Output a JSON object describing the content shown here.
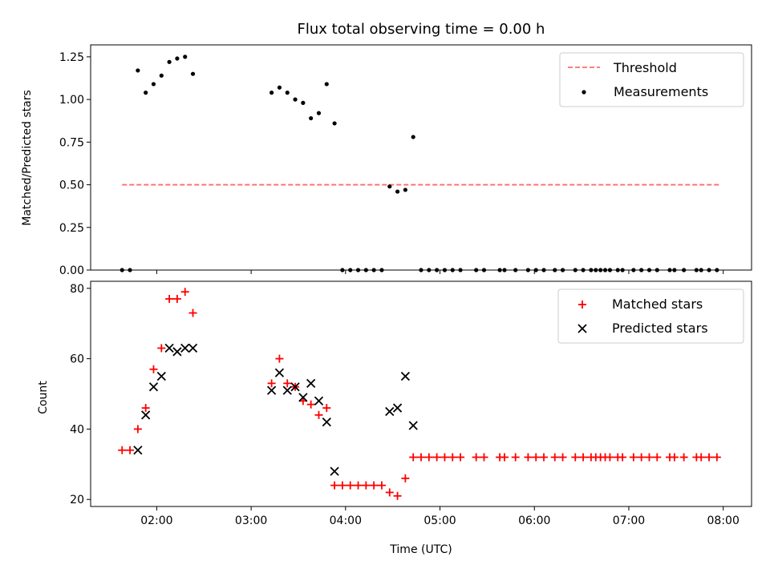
{
  "colors": {
    "threshold": "#ff6b6b",
    "measurement": "#000000",
    "matched": "#ff0000",
    "predicted": "#000000",
    "axis": "#000000"
  },
  "chart_data": [
    {
      "type": "scatter",
      "title": "Flux total observing time = 0.00 h",
      "xlabel": "",
      "ylabel": "Matched/Predicted stars",
      "ylim": [
        0,
        1.32
      ],
      "yticks": [
        0.0,
        0.25,
        0.5,
        0.75,
        1.0,
        1.25
      ],
      "ytick_labels": [
        "0.00",
        "0.25",
        "0.50",
        "0.75",
        "1.00",
        "1.25"
      ],
      "legend_position": "top-right",
      "legend": [
        "Threshold",
        "Measurements"
      ],
      "threshold": {
        "name": "Threshold",
        "y": 0.5,
        "x_start": "01:38",
        "x_end": "07:58"
      },
      "measurements": {
        "x": [
          "01:38",
          "01:43",
          "01:48",
          "01:53",
          "01:58",
          "02:03",
          "02:08",
          "02:13",
          "02:18",
          "02:23",
          "03:13",
          "03:18",
          "03:23",
          "03:28",
          "03:33",
          "03:38",
          "03:43",
          "03:48",
          "03:53",
          "03:58",
          "04:03",
          "04:08",
          "04:13",
          "04:18",
          "04:23",
          "04:28",
          "04:33",
          "04:38",
          "04:43",
          "04:48",
          "04:53",
          "04:58",
          "05:03",
          "05:08",
          "05:13",
          "05:23",
          "05:28",
          "05:38",
          "05:41",
          "05:48",
          "05:56",
          "06:01",
          "06:06",
          "06:13",
          "06:18",
          "06:26",
          "06:31",
          "06:36",
          "06:39",
          "06:42",
          "06:45",
          "06:48",
          "06:53",
          "06:56",
          "07:03",
          "07:08",
          "07:13",
          "07:18",
          "07:26",
          "07:29",
          "07:35",
          "07:43",
          "07:46",
          "07:51",
          "07:56"
        ],
        "y": [
          0,
          0,
          1.17,
          1.04,
          1.09,
          1.14,
          1.22,
          1.24,
          1.25,
          1.15,
          1.04,
          1.07,
          1.04,
          1.0,
          0.98,
          0.89,
          0.92,
          1.09,
          0.86,
          0,
          0,
          0,
          0,
          0,
          0,
          0.49,
          0.46,
          0.47,
          0.78,
          0,
          0,
          0,
          0,
          0,
          0,
          0,
          0,
          0,
          0,
          0,
          0,
          0,
          0,
          0,
          0,
          0,
          0,
          0,
          0,
          0,
          0,
          0,
          0,
          0,
          0,
          0,
          0,
          0,
          0,
          0,
          0,
          0,
          0,
          0,
          0
        ]
      }
    },
    {
      "type": "scatter",
      "title": "",
      "xlabel": "Time (UTC)",
      "ylabel": "Count",
      "xlim": [
        "01:18",
        "08:18"
      ],
      "ylim": [
        18,
        82
      ],
      "yticks": [
        20,
        40,
        60,
        80
      ],
      "xticks": [
        "02:00",
        "03:00",
        "04:00",
        "05:00",
        "06:00",
        "07:00",
        "08:00"
      ],
      "legend_position": "top-right",
      "legend": [
        "Matched stars",
        "Predicted stars"
      ],
      "series": [
        {
          "name": "Matched stars",
          "marker": "+",
          "x": [
            "01:38",
            "01:43",
            "01:48",
            "01:53",
            "01:58",
            "02:03",
            "02:08",
            "02:13",
            "02:18",
            "02:23",
            "03:13",
            "03:18",
            "03:23",
            "03:28",
            "03:33",
            "03:38",
            "03:43",
            "03:48",
            "03:53",
            "03:58",
            "04:03",
            "04:08",
            "04:13",
            "04:18",
            "04:23",
            "04:28",
            "04:33",
            "04:38",
            "04:43",
            "04:48",
            "04:53",
            "04:58",
            "05:03",
            "05:08",
            "05:13",
            "05:23",
            "05:28",
            "05:38",
            "05:41",
            "05:48",
            "05:56",
            "06:01",
            "06:06",
            "06:13",
            "06:18",
            "06:26",
            "06:31",
            "06:36",
            "06:39",
            "06:42",
            "06:45",
            "06:48",
            "06:53",
            "06:56",
            "07:03",
            "07:08",
            "07:13",
            "07:18",
            "07:26",
            "07:29",
            "07:35",
            "07:43",
            "07:46",
            "07:51",
            "07:56"
          ],
          "y": [
            34,
            34,
            40,
            46,
            57,
            63,
            77,
            77,
            79,
            73,
            53,
            60,
            53,
            52,
            48,
            47,
            44,
            46,
            24,
            24,
            24,
            24,
            24,
            24,
            24,
            22,
            21,
            26,
            32,
            32,
            32,
            32,
            32,
            32,
            32,
            32,
            32,
            32,
            32,
            32,
            32,
            32,
            32,
            32,
            32,
            32,
            32,
            32,
            32,
            32,
            32,
            32,
            32,
            32,
            32,
            32,
            32,
            32,
            32,
            32,
            32,
            32,
            32,
            32,
            32
          ]
        },
        {
          "name": "Predicted stars",
          "marker": "x",
          "x": [
            "01:48",
            "01:53",
            "01:58",
            "02:03",
            "02:08",
            "02:13",
            "02:18",
            "02:23",
            "03:13",
            "03:18",
            "03:23",
            "03:28",
            "03:33",
            "03:38",
            "03:43",
            "03:48",
            "03:53",
            "04:28",
            "04:33",
            "04:38",
            "04:43"
          ],
          "y": [
            34,
            44,
            52,
            55,
            63,
            62,
            63,
            63,
            51,
            56,
            51,
            52,
            49,
            53,
            48,
            42,
            28,
            45,
            46,
            55,
            41
          ]
        }
      ]
    }
  ]
}
